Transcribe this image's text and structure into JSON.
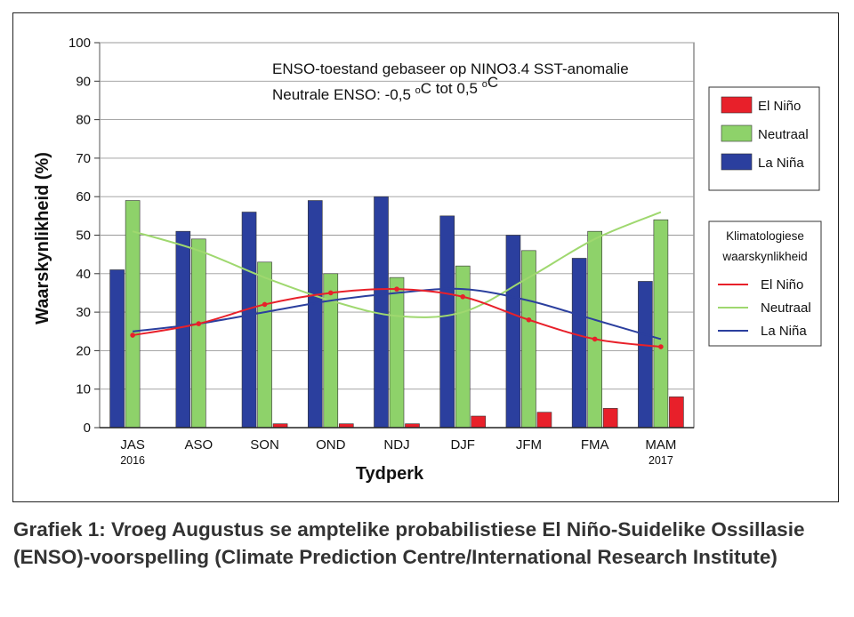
{
  "chart_data": {
    "type": "bar",
    "categories": [
      "JAS",
      "ASO",
      "SON",
      "OND",
      "NDJ",
      "DJF",
      "JFM",
      "FMA",
      "MAM"
    ],
    "category_sublabels": [
      "2016",
      "",
      "",
      "",
      "",
      "",
      "",
      "",
      "2017"
    ],
    "series": [
      {
        "name": "El Niño",
        "values": [
          0,
          0,
          1,
          1,
          1,
          3,
          4,
          5,
          8
        ],
        "color": "#e8202a"
      },
      {
        "name": "Neutraal",
        "values": [
          59,
          49,
          43,
          40,
          39,
          42,
          46,
          51,
          54
        ],
        "color": "#8ed26a"
      },
      {
        "name": "La Niña",
        "values": [
          41,
          51,
          56,
          59,
          60,
          55,
          50,
          44,
          38
        ],
        "color": "#2b3f9e"
      }
    ],
    "climatology": [
      {
        "name": "El Niño",
        "values": [
          24,
          27,
          32,
          35,
          36,
          34,
          28,
          23,
          21
        ],
        "color": "#e8202a"
      },
      {
        "name": "Neutraal",
        "values": [
          51,
          46,
          39,
          33,
          29,
          30,
          39,
          49,
          56
        ],
        "color": "#9fd86f"
      },
      {
        "name": "La Niña",
        "values": [
          25,
          27,
          30,
          33,
          35,
          36,
          33,
          28,
          23
        ],
        "color": "#2b3f9e"
      }
    ],
    "annotations": [
      "ENSO-toestand gebaseer op NINO3.4 SST-anomalie",
      "Neutrale ENSO: -0,5 °C tot 0,5 °C"
    ],
    "legend_bars_title": "",
    "legend_lines_title_1": "Klimatologiese",
    "legend_lines_title_2": "waarskynlikheid",
    "xlabel": "Tydperk",
    "ylabel": "Waarskynlikheid (%)",
    "ylim": [
      0,
      100
    ],
    "yticks": [
      0,
      10,
      20,
      30,
      40,
      50,
      60,
      70,
      80,
      90,
      100
    ],
    "grid": true,
    "legend_position": "right"
  },
  "caption": "Grafiek 1: Vroeg Augustus se amptelike probabilistiese El Niño-Suidelike Ossillasie (ENSO)-voorspelling (Climate Prediction Centre/International Research Institute)"
}
